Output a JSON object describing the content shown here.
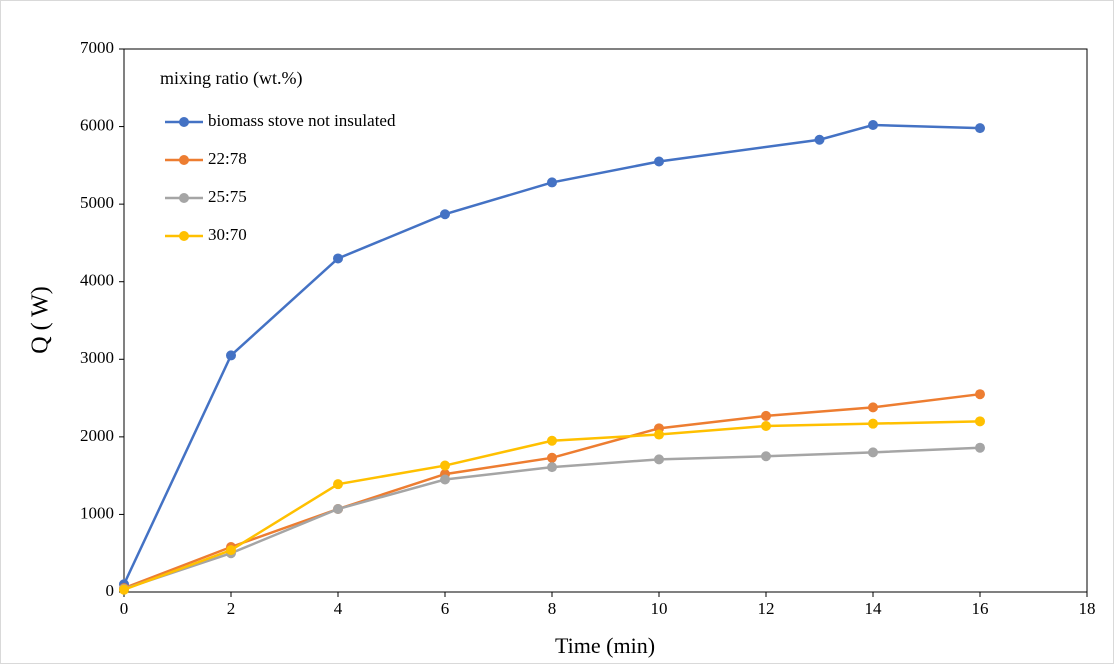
{
  "chart_data": {
    "type": "line",
    "x_label": "Time (min)",
    "y_label": "Q ( W)",
    "legend_title": "mixing ratio (wt.%)",
    "legend": "top-left",
    "xlim": [
      0,
      18
    ],
    "xticks": [
      0,
      2,
      4,
      6,
      8,
      10,
      12,
      14,
      16,
      18
    ],
    "ylim": [
      0,
      7000
    ],
    "yticks": [
      0,
      1000,
      2000,
      3000,
      4000,
      5000,
      6000,
      7000
    ],
    "series": [
      {
        "name": "biomass stove not insulated",
        "color": "#4472c4",
        "x": [
          0,
          2,
          4,
          6,
          8,
          10,
          13,
          14,
          16
        ],
        "values": [
          100,
          3050,
          4300,
          4870,
          5280,
          5550,
          5830,
          6020,
          5980
        ]
      },
      {
        "name": "22:78",
        "color": "#ed7d31",
        "x": [
          0,
          2,
          4,
          6,
          8,
          10,
          12,
          14,
          16
        ],
        "values": [
          50,
          580,
          1070,
          1520,
          1730,
          2110,
          2270,
          2380,
          2550
        ]
      },
      {
        "name": "25:75",
        "color": "#a5a5a5",
        "x": [
          0,
          2,
          4,
          6,
          8,
          10,
          12,
          14,
          16
        ],
        "values": [
          40,
          500,
          1070,
          1450,
          1610,
          1710,
          1750,
          1800,
          1860
        ]
      },
      {
        "name": "30:70",
        "color": "#ffc000",
        "x": [
          0,
          2,
          4,
          6,
          8,
          10,
          12,
          14,
          16
        ],
        "values": [
          30,
          540,
          1390,
          1630,
          1950,
          2030,
          2140,
          2170,
          2200
        ]
      }
    ]
  }
}
